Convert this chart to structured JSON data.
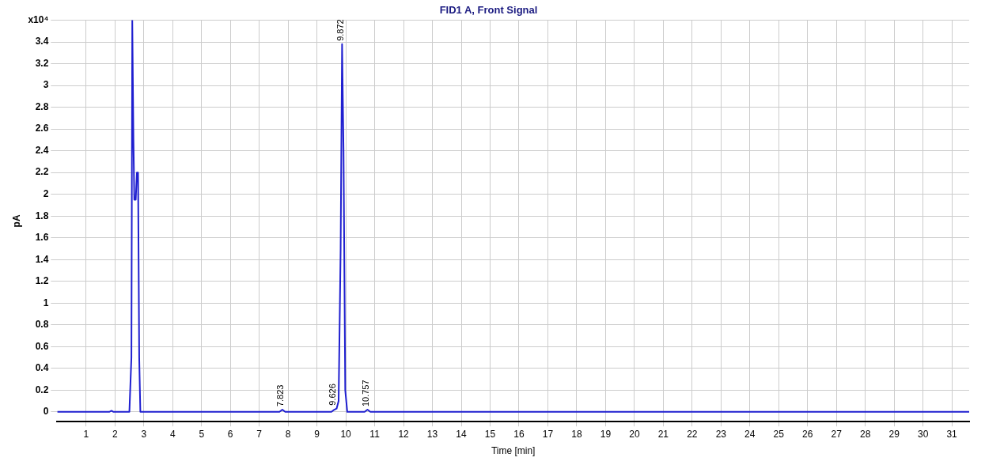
{
  "chart_data": {
    "type": "line",
    "title": "FID1 A, Front Signal",
    "xlabel": "Time [min]",
    "ylabel": "pA",
    "x": [
      0,
      1.8,
      1.88,
      1.95,
      2.5,
      2.57,
      2.6,
      2.64,
      2.67,
      2.72,
      2.76,
      2.8,
      2.84,
      2.88,
      7.7,
      7.8,
      7.9,
      9.5,
      9.6,
      9.68,
      9.75,
      9.82,
      9.87,
      9.92,
      9.98,
      10.05,
      10.65,
      10.75,
      10.85,
      31.6
    ],
    "series": [
      {
        "color": "#1f1fd0",
        "values": [
          0,
          0,
          0.01,
          0,
          0,
          0.5,
          3.6,
          2.5,
          1.95,
          1.95,
          2.2,
          2.2,
          0.5,
          0,
          0,
          0.02,
          0,
          0,
          0.02,
          0.03,
          0.1,
          1.5,
          3.38,
          2.4,
          0.2,
          0,
          0,
          0.02,
          0,
          0
        ]
      }
    ],
    "xlim": [
      0,
      31.6
    ],
    "xticks": [
      1,
      2,
      3,
      4,
      5,
      6,
      7,
      8,
      9,
      10,
      11,
      12,
      13,
      14,
      15,
      16,
      17,
      18,
      19,
      20,
      21,
      22,
      23,
      24,
      25,
      26,
      27,
      28,
      29,
      30,
      31
    ],
    "ylim": [
      -0.09,
      3.6
    ],
    "yticks": [
      0,
      0.2,
      0.4,
      0.6,
      0.8,
      1,
      1.2,
      1.4,
      1.6,
      1.8,
      2,
      2.2,
      2.4,
      2.6,
      2.8,
      3,
      3.2,
      3.4,
      {
        "value": 3.6,
        "label": "x10⁴"
      }
    ],
    "grid": true,
    "legend": false,
    "marker": "none",
    "line_style": "solid",
    "annotations": [
      {
        "text": "7.823",
        "x": 7.8,
        "y": 0.02
      },
      {
        "text": "9.626",
        "x": 9.6,
        "y": 0.03
      },
      {
        "text": "9.872",
        "x": 9.87,
        "y": 3.38
      },
      {
        "text": "10.757",
        "x": 10.75,
        "y": 0.02
      }
    ]
  }
}
